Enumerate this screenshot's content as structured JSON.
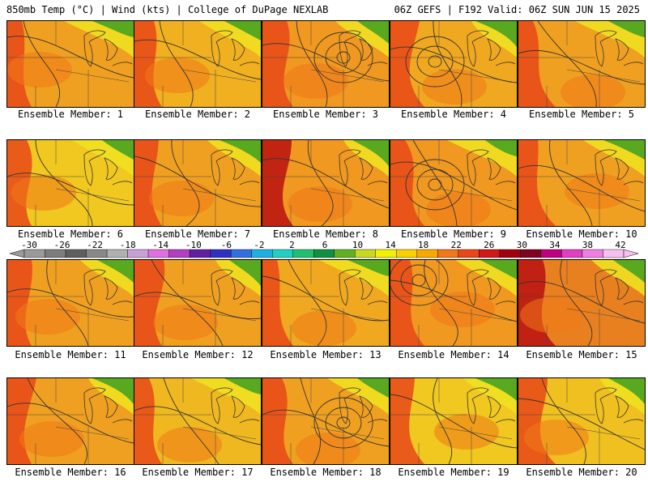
{
  "header": {
    "left": "850mb Temp (°C) | Wind (kts) | College of DuPage NEXLAB",
    "right": "06Z GEFS | F192 Valid: 06Z SUN JUN 15 2025"
  },
  "colorbar": {
    "labels": [
      "-30",
      "-26",
      "-22",
      "-18",
      "-14",
      "-10",
      "-6",
      "-2",
      "2",
      "6",
      "10",
      "14",
      "18",
      "22",
      "26",
      "30",
      "34",
      "38",
      "42"
    ],
    "colors": [
      "#9a9a9a",
      "#7c7c7c",
      "#5e5e5e",
      "#888888",
      "#b0b0b0",
      "#c8a0d8",
      "#e070e0",
      "#b040c0",
      "#6020a0",
      "#3030c0",
      "#3070e0",
      "#20b0e0",
      "#20d0c0",
      "#20c070",
      "#109040",
      "#60b020",
      "#c8d820",
      "#f0f000",
      "#f8d000",
      "#f8a800",
      "#f07818",
      "#e84818",
      "#d01818",
      "#a00010",
      "#800020",
      "#c00080",
      "#e040c0",
      "#f080e0",
      "#f8c0f0"
    ]
  },
  "panels": [
    {
      "label": "Ensemble Member: 1",
      "bg": "#f0a020"
    },
    {
      "label": "Ensemble Member: 2",
      "bg": "#f0b020"
    },
    {
      "label": "Ensemble Member: 3",
      "bg": "#f09820"
    },
    {
      "label": "Ensemble Member: 4",
      "bg": "#f0a820"
    },
    {
      "label": "Ensemble Member: 5",
      "bg": "#f0a020"
    },
    {
      "label": "Ensemble Member: 6",
      "bg": "#f0c820"
    },
    {
      "label": "Ensemble Member: 7",
      "bg": "#f0a020"
    },
    {
      "label": "Ensemble Member: 8",
      "bg": "#f09820"
    },
    {
      "label": "Ensemble Member: 9",
      "bg": "#f09820"
    },
    {
      "label": "Ensemble Member: 10",
      "bg": "#f0a020"
    },
    {
      "label": "Ensemble Member: 11",
      "bg": "#f0a020"
    },
    {
      "label": "Ensemble Member: 12",
      "bg": "#f0a020"
    },
    {
      "label": "Ensemble Member: 13",
      "bg": "#f0a820"
    },
    {
      "label": "Ensemble Member: 14",
      "bg": "#f09820"
    },
    {
      "label": "Ensemble Member: 15",
      "bg": "#e88020"
    },
    {
      "label": "Ensemble Member: 16",
      "bg": "#f0a020"
    },
    {
      "label": "Ensemble Member: 17",
      "bg": "#f0b820"
    },
    {
      "label": "Ensemble Member: 18",
      "bg": "#f0a020"
    },
    {
      "label": "Ensemble Member: 19",
      "bg": "#f0c820"
    },
    {
      "label": "Ensemble Member: 20",
      "bg": "#f0c020"
    }
  ]
}
